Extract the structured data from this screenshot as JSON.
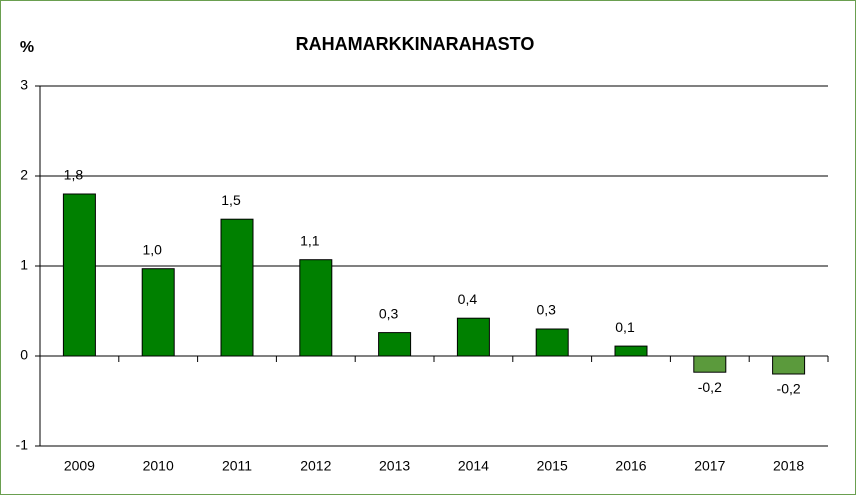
{
  "chart_data": {
    "type": "bar",
    "title": "RAHAMARKKINARAHASTO",
    "y_label": "%",
    "categories": [
      "2009",
      "2010",
      "2011",
      "2012",
      "2013",
      "2014",
      "2015",
      "2016",
      "2017",
      "2018"
    ],
    "values": [
      1.8,
      0.97,
      1.52,
      1.07,
      0.26,
      0.42,
      0.3,
      0.11,
      -0.18,
      -0.2
    ],
    "value_labels": [
      "1,8",
      "1,0",
      "1,5",
      "1,1",
      "0,3",
      "0,4",
      "0,3",
      "0,1",
      "-0,2",
      "-0,2"
    ],
    "colors": [
      "#008000",
      "#008000",
      "#008000",
      "#008000",
      "#008000",
      "#008000",
      "#008000",
      "#008000",
      "#5b9a3c",
      "#5b9a3c"
    ],
    "ylim": [
      -1,
      3
    ],
    "yticks": [
      -1,
      0,
      1,
      2,
      3
    ],
    "grid": true
  }
}
